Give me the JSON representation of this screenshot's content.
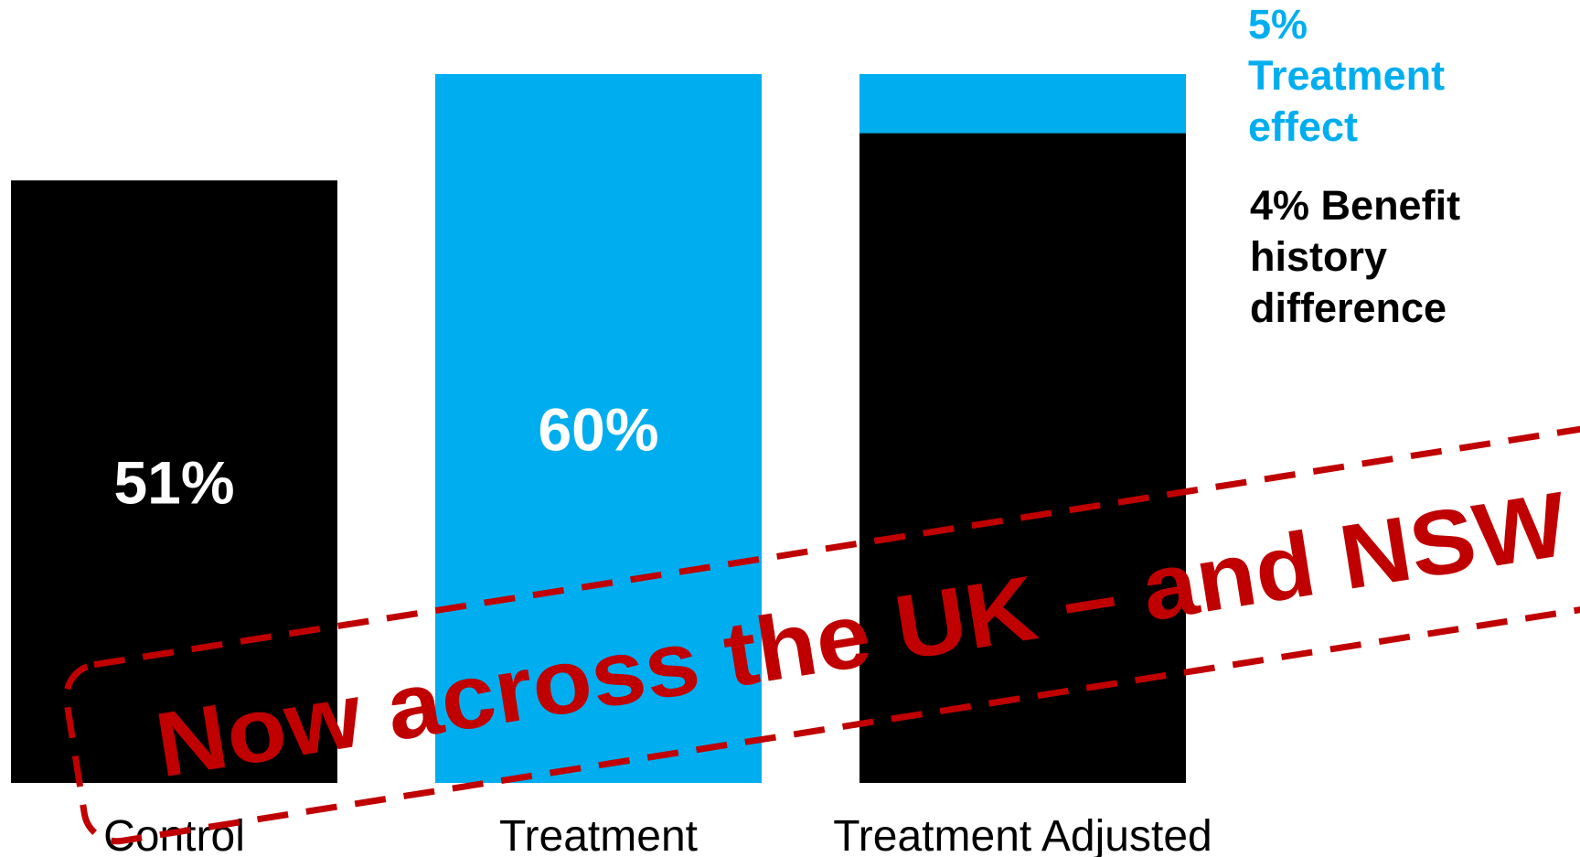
{
  "chart_data": {
    "type": "bar",
    "categories": [
      "Control",
      "Treatment",
      "Treatment Adjusted"
    ],
    "values": [
      51,
      60,
      60
    ],
    "value_labels": [
      "51%",
      "60%",
      ""
    ],
    "stack": {
      "category": "Treatment Adjusted",
      "base_value": 55,
      "top_segment_value": 5
    },
    "annotations": {
      "treatment_effect": [
        "5%",
        "Treatment",
        "effect"
      ],
      "benefit_history": [
        "4% Benefit",
        "history",
        "difference"
      ]
    },
    "ylim": [
      0,
      60
    ],
    "grid": false,
    "legend": "none",
    "colors": {
      "control": "#000000",
      "treatment": "#00aeef",
      "adjusted_base": "#000000",
      "adjusted_top": "#00aeef",
      "label_on_bar": "#ffffff",
      "category_label": "#000000",
      "treatment_effect_text": "#00aeef",
      "benefit_text": "#000000",
      "stamp": "#c00000"
    }
  },
  "stamp": {
    "text": "Now across the UK – and NSW"
  }
}
